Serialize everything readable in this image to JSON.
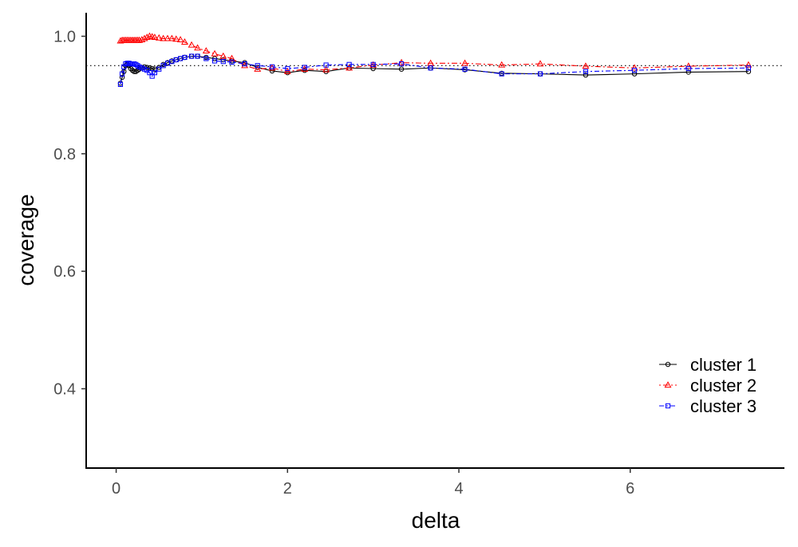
{
  "chart_data": {
    "type": "line",
    "title": "",
    "xlabel": "delta",
    "ylabel": "coverage",
    "xlim": [
      -0.35,
      7.8
    ],
    "ylim": [
      0.265,
      1.04
    ],
    "x_ticks": [
      0,
      2,
      4,
      6
    ],
    "x_tick_labels": [
      "0",
      "2",
      "4",
      "6"
    ],
    "y_ticks": [
      0.4,
      0.6,
      0.8,
      1.0
    ],
    "y_tick_labels": [
      "0.4",
      "0.6",
      "0.8",
      "1.0"
    ],
    "grid": false,
    "legend_position": "bottom-right",
    "reference_line": {
      "y": 0.95,
      "style": "dotted",
      "color": "#000000"
    },
    "series": [
      {
        "name": "cluster 1",
        "color": "#000000",
        "marker": "circle",
        "line_style": "solid",
        "x": [
          0.05,
          0.07,
          0.09,
          0.11,
          0.13,
          0.15,
          0.17,
          0.19,
          0.21,
          0.23,
          0.25,
          0.27,
          0.3,
          0.33,
          0.36,
          0.39,
          0.42,
          0.45,
          0.5,
          0.55,
          0.6,
          0.65,
          0.7,
          0.75,
          0.8,
          0.88,
          0.95,
          1.05,
          1.15,
          1.25,
          1.35,
          1.5,
          1.65,
          1.82,
          2.0,
          2.2,
          2.45,
          2.72,
          3.0,
          3.33,
          3.67,
          4.07,
          4.5,
          4.95,
          5.48,
          6.05,
          6.68,
          7.38
        ],
        "y": [
          0.92,
          0.93,
          0.94,
          0.95,
          0.952,
          0.95,
          0.945,
          0.942,
          0.94,
          0.94,
          0.942,
          0.944,
          0.946,
          0.948,
          0.947,
          0.946,
          0.945,
          0.944,
          0.947,
          0.952,
          0.955,
          0.958,
          0.96,
          0.962,
          0.964,
          0.966,
          0.966,
          0.964,
          0.962,
          0.96,
          0.958,
          0.955,
          0.947,
          0.941,
          0.938,
          0.942,
          0.94,
          0.946,
          0.945,
          0.944,
          0.946,
          0.943,
          0.937,
          0.936,
          0.934,
          0.936,
          0.939,
          0.94
        ]
      },
      {
        "name": "cluster 2",
        "color": "#ff0000",
        "marker": "triangle",
        "line_style": "dotdash",
        "x": [
          0.05,
          0.07,
          0.09,
          0.11,
          0.13,
          0.15,
          0.17,
          0.19,
          0.21,
          0.23,
          0.25,
          0.27,
          0.3,
          0.33,
          0.36,
          0.39,
          0.42,
          0.45,
          0.5,
          0.55,
          0.6,
          0.65,
          0.7,
          0.75,
          0.8,
          0.88,
          0.95,
          1.05,
          1.15,
          1.25,
          1.35,
          1.5,
          1.65,
          1.82,
          2.0,
          2.2,
          2.45,
          2.72,
          3.0,
          3.33,
          3.67,
          4.07,
          4.5,
          4.95,
          5.48,
          6.05,
          6.68,
          7.38
        ],
        "y": [
          0.992,
          0.993,
          0.993,
          0.993,
          0.993,
          0.993,
          0.993,
          0.993,
          0.993,
          0.993,
          0.993,
          0.993,
          0.994,
          0.996,
          0.998,
          1.0,
          0.999,
          0.998,
          0.997,
          0.996,
          0.996,
          0.996,
          0.995,
          0.994,
          0.99,
          0.985,
          0.98,
          0.975,
          0.97,
          0.966,
          0.962,
          0.95,
          0.944,
          0.946,
          0.94,
          0.944,
          0.943,
          0.946,
          0.951,
          0.955,
          0.954,
          0.954,
          0.951,
          0.953,
          0.949,
          0.946,
          0.949,
          0.951
        ]
      },
      {
        "name": "cluster 3",
        "color": "#0000ff",
        "marker": "square",
        "line_style": "dashdot",
        "x": [
          0.05,
          0.07,
          0.09,
          0.11,
          0.13,
          0.15,
          0.17,
          0.19,
          0.21,
          0.23,
          0.25,
          0.27,
          0.3,
          0.33,
          0.36,
          0.39,
          0.42,
          0.45,
          0.5,
          0.55,
          0.6,
          0.65,
          0.7,
          0.75,
          0.8,
          0.88,
          0.95,
          1.05,
          1.15,
          1.25,
          1.35,
          1.5,
          1.65,
          1.82,
          2.0,
          2.2,
          2.45,
          2.72,
          3.0,
          3.33,
          3.67,
          4.07,
          4.5,
          4.95,
          5.48,
          6.05,
          6.68,
          7.38
        ],
        "y": [
          0.918,
          0.936,
          0.948,
          0.953,
          0.954,
          0.954,
          0.953,
          0.953,
          0.953,
          0.952,
          0.95,
          0.948,
          0.946,
          0.944,
          0.942,
          0.938,
          0.932,
          0.938,
          0.944,
          0.95,
          0.954,
          0.957,
          0.96,
          0.962,
          0.964,
          0.966,
          0.966,
          0.962,
          0.958,
          0.957,
          0.956,
          0.953,
          0.95,
          0.948,
          0.945,
          0.947,
          0.951,
          0.952,
          0.952,
          0.953,
          0.946,
          0.944,
          0.936,
          0.936,
          0.94,
          0.942,
          0.945,
          0.946
        ]
      }
    ]
  }
}
